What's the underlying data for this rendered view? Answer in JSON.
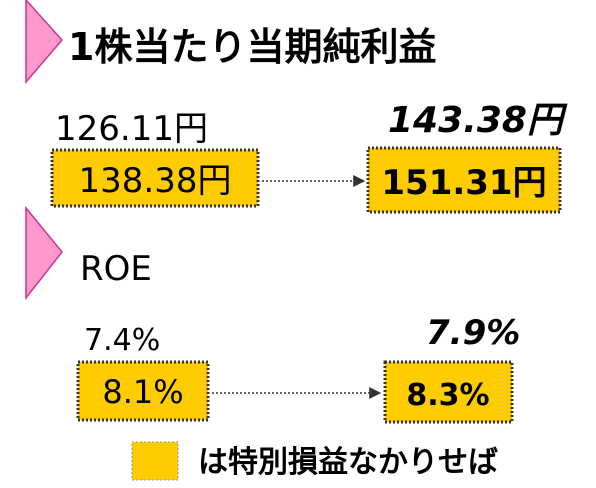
{
  "eps": {
    "title": "1株当たり当期純利益",
    "prior": "126.11円",
    "prior_adjusted": "138.38円",
    "current": "143.38円",
    "current_adjusted": "151.31円"
  },
  "roe": {
    "title": "ROE",
    "prior": "7.4%",
    "prior_adjusted": "8.1%",
    "current": "7.9%",
    "current_adjusted": "8.3%"
  },
  "legend": {
    "label": "は特別損益なかりせば"
  }
}
